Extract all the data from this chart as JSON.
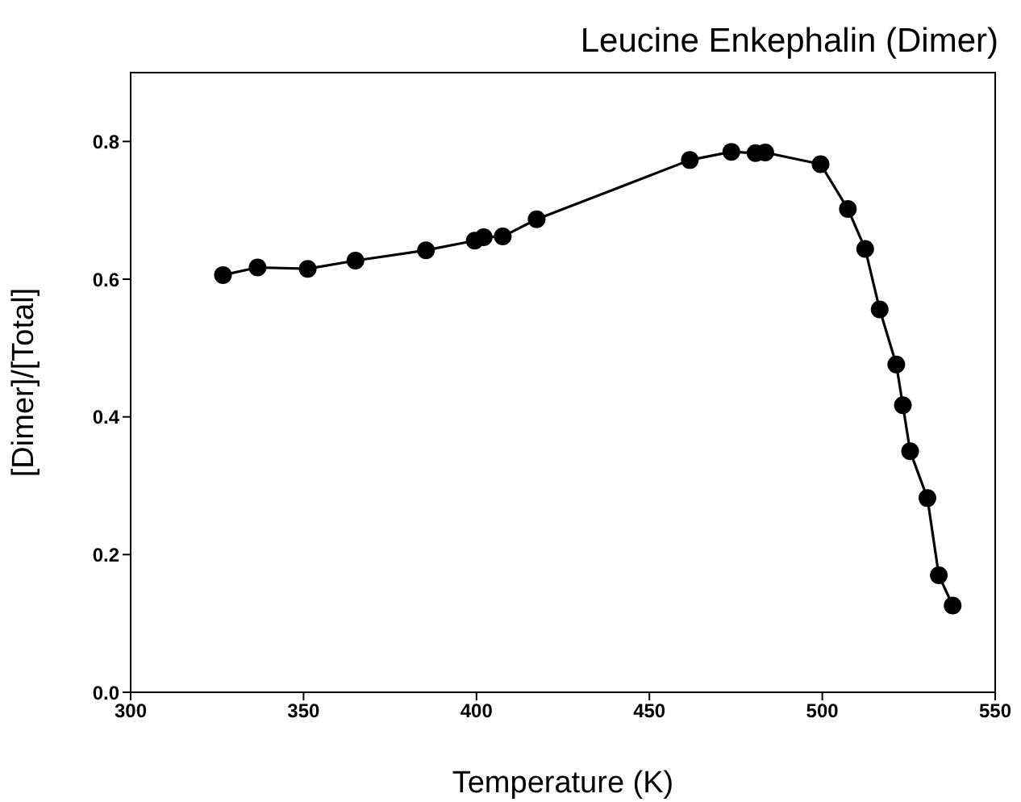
{
  "chart_data": {
    "type": "line",
    "title": "Leucine Enkephalin (Dimer)",
    "xlabel": "Temperature (K)",
    "ylabel": "[Dimer]/[Total]",
    "x": [
      326.7,
      336.7,
      351.2,
      365.0,
      385.4,
      399.5,
      402.1,
      407.6,
      417.4,
      461.7,
      473.7,
      480.7,
      483.5,
      499.5,
      507.4,
      512.4,
      516.6,
      521.4,
      523.3,
      525.4,
      530.4,
      533.7,
      537.7
    ],
    "series": [
      {
        "color": "#000000",
        "values": [
          0.606,
          0.617,
          0.615,
          0.627,
          0.642,
          0.656,
          0.661,
          0.662,
          0.687,
          0.773,
          0.785,
          0.783,
          0.784,
          0.767,
          0.702,
          0.644,
          0.556,
          0.476,
          0.417,
          0.35,
          0.282,
          0.17,
          0.126
        ]
      }
    ],
    "xlim": [
      300,
      550
    ],
    "xticks": [
      300,
      350,
      400,
      450,
      500,
      550
    ],
    "ylim": [
      0,
      0.9
    ],
    "yticks": [
      {
        "value": 0,
        "label": "0.0"
      },
      {
        "value": 0.2,
        "label": "0.2"
      },
      {
        "value": 0.4,
        "label": "0.4"
      },
      {
        "value": 0.6,
        "label": "0.6"
      },
      {
        "value": 0.8,
        "label": "0.8"
      }
    ],
    "marker": "circle",
    "line_style": "solid",
    "grid": false,
    "legend": false
  }
}
